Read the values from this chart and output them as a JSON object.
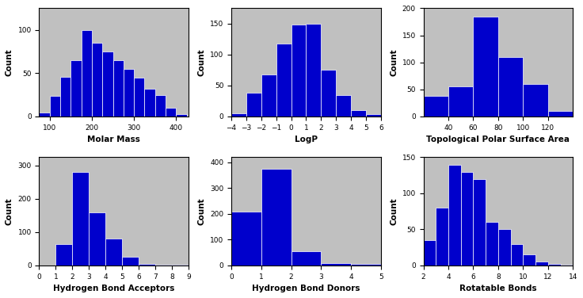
{
  "plots": [
    {
      "title": "Molar Mass",
      "xlabel": "Molar Mass",
      "ylabel": "Count",
      "bin_edges": [
        75,
        100,
        125,
        150,
        175,
        200,
        225,
        250,
        275,
        300,
        325,
        350,
        375,
        400,
        425
      ],
      "counts": [
        4,
        24,
        46,
        65,
        100,
        85,
        75,
        65,
        55,
        45,
        32,
        25,
        10,
        3
      ],
      "ylim": [
        0,
        125
      ],
      "yticks": [
        0,
        50,
        100
      ],
      "xlim": [
        75,
        430
      ],
      "xticks": [
        100,
        200,
        300,
        400
      ]
    },
    {
      "title": "LogP",
      "xlabel": "LogP",
      "ylabel": "Count",
      "bin_edges": [
        -4,
        -3,
        -2,
        -1,
        0,
        1,
        2,
        3,
        4,
        5,
        6
      ],
      "counts": [
        5,
        38,
        68,
        118,
        148,
        150,
        75,
        35,
        10,
        3
      ],
      "ylim": [
        0,
        175
      ],
      "yticks": [
        0,
        50,
        100,
        150
      ],
      "xlim": [
        -4,
        6
      ],
      "xticks": [
        -4,
        -3,
        -2,
        -1,
        0,
        1,
        2,
        3,
        4,
        5,
        6
      ]
    },
    {
      "title": "Topological Polar Surface Area",
      "xlabel": "Topological Polar Surface Area",
      "ylabel": "Count",
      "bin_edges": [
        20,
        40,
        60,
        80,
        100,
        120,
        140
      ],
      "counts": [
        38,
        55,
        185,
        110,
        60,
        10
      ],
      "ylim": [
        0,
        200
      ],
      "yticks": [
        0,
        50,
        100,
        150,
        200
      ],
      "xlim": [
        20,
        140
      ],
      "xticks": [
        40,
        60,
        80,
        100,
        120
      ]
    },
    {
      "title": "Hydrogen Bond Acceptors",
      "xlabel": "Hydrogen Bond Acceptors",
      "ylabel": "Count",
      "bin_edges": [
        0,
        1,
        2,
        3,
        4,
        5,
        6,
        7,
        8,
        9
      ],
      "counts": [
        0,
        65,
        280,
        160,
        80,
        25,
        5,
        2,
        1
      ],
      "ylim": [
        0,
        325
      ],
      "yticks": [
        0,
        100,
        200,
        300
      ],
      "xlim": [
        0,
        9
      ],
      "xticks": [
        0,
        1,
        2,
        3,
        4,
        5,
        6,
        7,
        8,
        9
      ]
    },
    {
      "title": "Hydrogen Bond Donors",
      "xlabel": "Hydrogen Bond Donors",
      "ylabel": "Count",
      "bin_edges": [
        0,
        1,
        2,
        3,
        4,
        5
      ],
      "counts": [
        210,
        375,
        55,
        10,
        5
      ],
      "ylim": [
        0,
        420
      ],
      "yticks": [
        0,
        100,
        200,
        300,
        400
      ],
      "xlim": [
        0,
        5
      ],
      "xticks": [
        0,
        1,
        2,
        3,
        4,
        5
      ]
    },
    {
      "title": "Rotatable Bonds",
      "xlabel": "Rotatable Bonds",
      "ylabel": "Count",
      "bin_edges": [
        2,
        3,
        4,
        5,
        6,
        7,
        8,
        9,
        10,
        11,
        12,
        13,
        14
      ],
      "counts": [
        35,
        80,
        140,
        130,
        120,
        60,
        50,
        30,
        15,
        5,
        2,
        1
      ],
      "ylim": [
        0,
        150
      ],
      "yticks": [
        0,
        50,
        100,
        150
      ],
      "xlim": [
        2,
        14
      ],
      "xticks": [
        2,
        4,
        6,
        8,
        10,
        12,
        14
      ]
    }
  ],
  "bar_color": "#0000CC",
  "bg_color": "#C0C0C0",
  "fig_color": "#FFFFFF",
  "label_fontsize": 7.5,
  "tick_fontsize": 6.5
}
